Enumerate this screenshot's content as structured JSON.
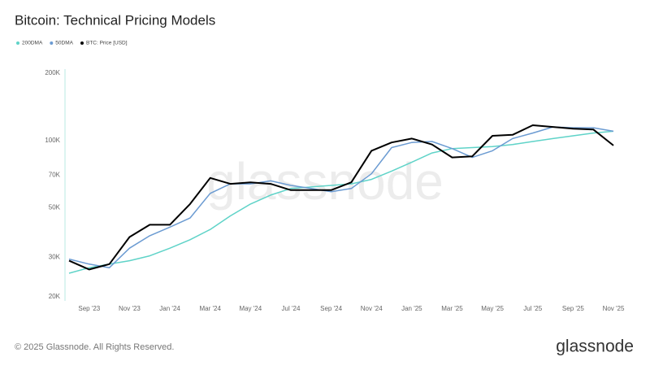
{
  "chart_data": {
    "type": "line",
    "title": "Bitcoin: Technical Pricing Models",
    "footer": "© 2025 Glassnode. All Rights Reserved.",
    "brand": "glassnode",
    "log_y": true,
    "grid": false,
    "legend": "top-left",
    "x": [
      "2023-08",
      "2023-09",
      "2023-10",
      "2023-11",
      "2023-12",
      "2024-01",
      "2024-02",
      "2024-03",
      "2024-04",
      "2024-05",
      "2024-06",
      "2024-07",
      "2024-08",
      "2024-09",
      "2024-10",
      "2024-11",
      "2024-12",
      "2025-01",
      "2025-02",
      "2025-03",
      "2025-04",
      "2025-05",
      "2025-06",
      "2025-07",
      "2025-08",
      "2025-09",
      "2025-10",
      "2025-11"
    ],
    "xticks": [
      {
        "value": "2023-09",
        "label": "Sep '23"
      },
      {
        "value": "2023-11",
        "label": "Nov '23"
      },
      {
        "value": "2024-01",
        "label": "Jan '24"
      },
      {
        "value": "2024-03",
        "label": "Mar '24"
      },
      {
        "value": "2024-05",
        "label": "May '24"
      },
      {
        "value": "2024-07",
        "label": "Jul '24"
      },
      {
        "value": "2024-09",
        "label": "Sep '24"
      },
      {
        "value": "2024-11",
        "label": "Nov '24"
      },
      {
        "value": "2025-01",
        "label": "Jan '25"
      },
      {
        "value": "2025-03",
        "label": "Mar '25"
      },
      {
        "value": "2025-05",
        "label": "May '25"
      },
      {
        "value": "2025-07",
        "label": "Jul '25"
      },
      {
        "value": "2025-09",
        "label": "Sep '25"
      },
      {
        "value": "2025-11",
        "label": "Nov '25"
      }
    ],
    "ylim": [
      20000,
      200000
    ],
    "yticks": [
      {
        "value": 20000,
        "label": "20K"
      },
      {
        "value": 30000,
        "label": "30K"
      },
      {
        "value": 50000,
        "label": "50K"
      },
      {
        "value": 70000,
        "label": "70K"
      },
      {
        "value": 100000,
        "label": "100K"
      },
      {
        "value": 200000,
        "label": "200K"
      }
    ],
    "series": [
      {
        "name": "200DMA",
        "color": "#5fd3c8",
        "values": [
          25500,
          27000,
          28000,
          29000,
          30500,
          33000,
          36000,
          40000,
          46000,
          52000,
          57000,
          61000,
          62000,
          63000,
          64000,
          67000,
          73000,
          80000,
          88000,
          92000,
          93000,
          94000,
          96000,
          99000,
          102000,
          105000,
          108000,
          110000
        ]
      },
      {
        "name": "50DMA",
        "color": "#6b9bd2",
        "values": [
          29500,
          28000,
          27000,
          33000,
          37500,
          41000,
          45000,
          58000,
          64000,
          64000,
          66000,
          63000,
          61000,
          59000,
          61000,
          71000,
          93000,
          98000,
          99000,
          92000,
          84000,
          90000,
          102000,
          108000,
          115000,
          114000,
          114000,
          110000
        ]
      },
      {
        "name": "BTC: Price [USD]",
        "color": "#000000",
        "values": [
          29000,
          26500,
          28000,
          37000,
          42000,
          42000,
          52000,
          68000,
          64000,
          65000,
          64000,
          60000,
          60000,
          60000,
          65000,
          90000,
          98000,
          102000,
          96000,
          84000,
          85000,
          105000,
          106000,
          117000,
          115000,
          113000,
          112000,
          95000
        ]
      }
    ]
  }
}
